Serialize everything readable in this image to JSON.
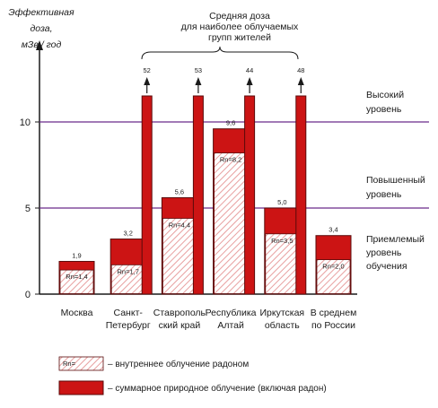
{
  "chart_data": {
    "type": "bar",
    "ylabel": [
      "Эффективная",
      "доза,",
      "мЗв / год"
    ],
    "ylim": [
      0,
      13
    ],
    "yticks": [
      0,
      5,
      10
    ],
    "levels": [
      {
        "y": 10,
        "label": [
          "Высокий",
          "уровень"
        ],
        "color": "#6a2a8a"
      },
      {
        "y": 5,
        "label": [
          "Повышенный",
          "уровень"
        ],
        "color": "#6a2a8a"
      }
    ],
    "acceptable_label": [
      "Приемлемый",
      "уровень",
      "обучения"
    ],
    "group_annotation": [
      "Средняя доза",
      "для наиболее облучаемых",
      "групп жителей"
    ],
    "categories": [
      {
        "label": [
          "Москва"
        ],
        "total": 1.9,
        "total_label": "1,9",
        "radon": 1.4,
        "radon_label": "Rn=1,4",
        "high": null
      },
      {
        "label": [
          "Санкт-",
          "Петербург"
        ],
        "total": 3.2,
        "total_label": "3,2",
        "radon": 1.7,
        "radon_label": "Rn=1,7",
        "high": 52
      },
      {
        "label": [
          "Ставрополь",
          "ский край"
        ],
        "total": 5.6,
        "total_label": "5,6",
        "radon": 4.4,
        "radon_label": "Rn=4,4",
        "high": 53
      },
      {
        "label": [
          "Республика",
          "Алтай"
        ],
        "total": 9.6,
        "total_label": "9,6",
        "radon": 8.2,
        "radon_label": "Rn=8,2",
        "high": 44
      },
      {
        "label": [
          "Иркутская",
          "область"
        ],
        "total": 5.0,
        "total_label": "5,0",
        "radon": 3.5,
        "radon_label": "Rn=3,5",
        "high": 48
      },
      {
        "label": [
          "В среднем",
          "по России"
        ],
        "total": 3.4,
        "total_label": "3,4",
        "radon": 2.0,
        "radon_label": "Rn=2,0",
        "high": null
      }
    ],
    "legend": [
      {
        "swatch_text": "Rn=",
        "label": "– внутреннее облучение радоном",
        "kind": "radon"
      },
      {
        "swatch_text": "",
        "label": "– суммарное природное облучение (включая радон)",
        "kind": "total"
      }
    ],
    "colors": {
      "total": "#cc1414",
      "total_stroke": "#5a0a0a",
      "radon_fill": "#ffffff",
      "radon_hatch": "#e8a0a0"
    }
  }
}
